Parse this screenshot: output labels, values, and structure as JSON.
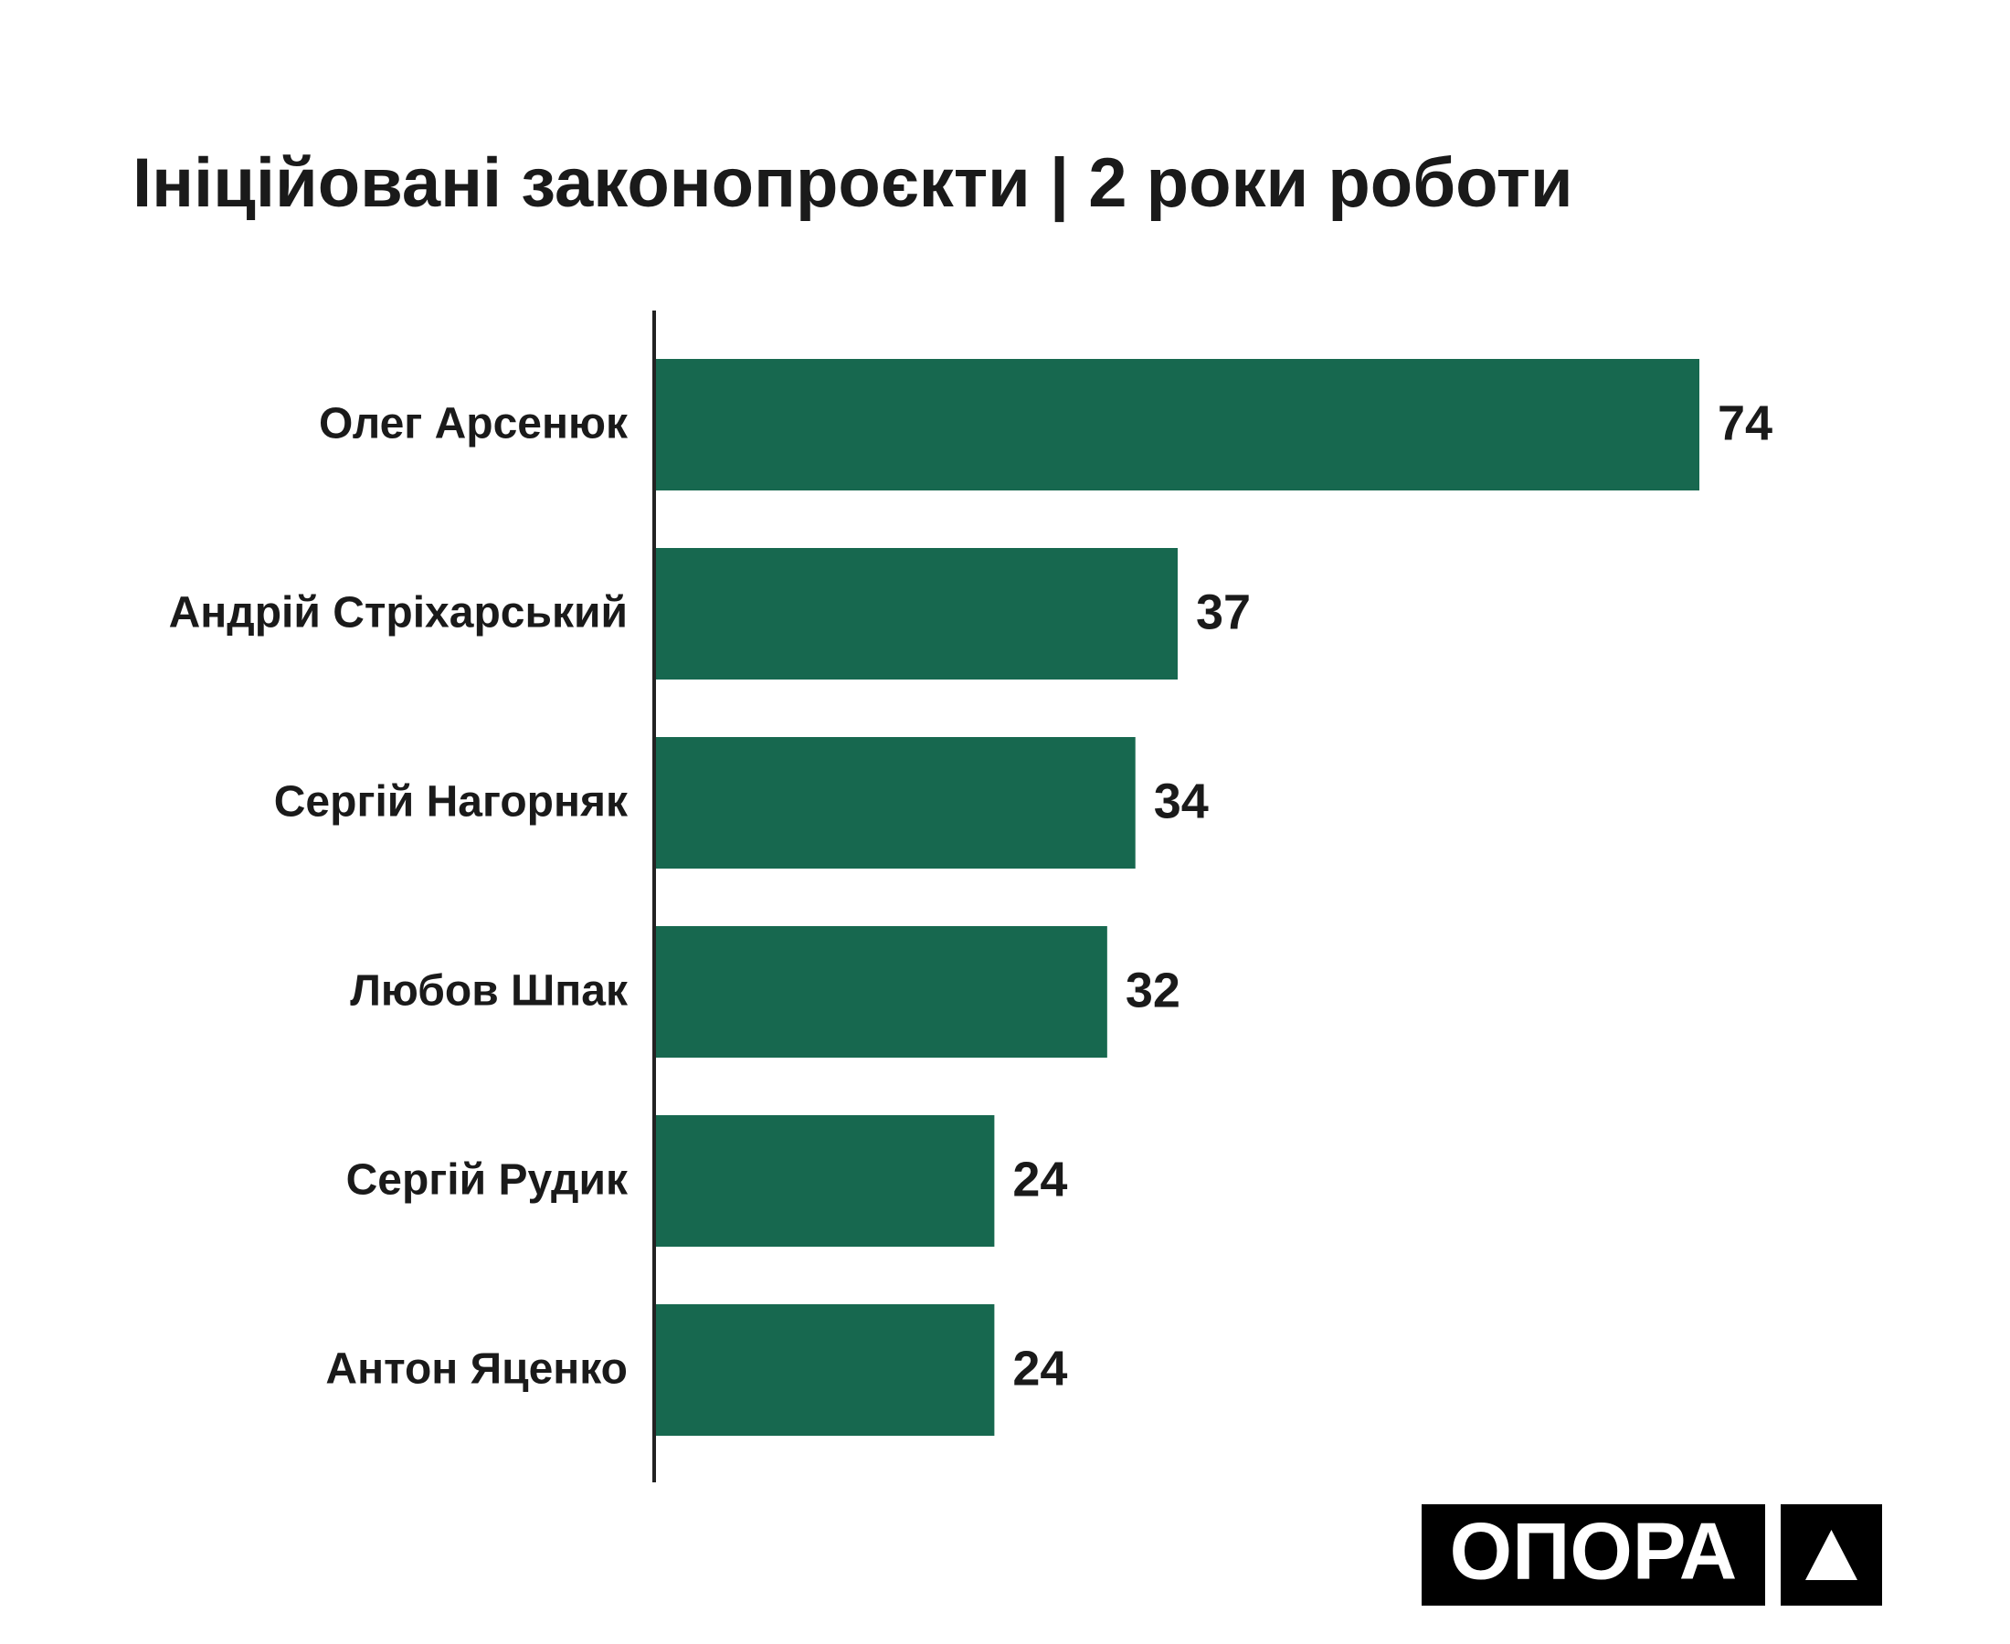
{
  "chart_data": {
    "type": "bar",
    "orientation": "horizontal",
    "title": "Ініційовані законопроєкти | 2 роки роботи",
    "categories": [
      "Олег Арсенюк",
      "Андрій Стріхарський",
      "Сергій Нагорняк",
      "Любов Шпак",
      "Сергій Рудик",
      "Антон Яценко"
    ],
    "values": [
      74,
      37,
      34,
      32,
      24,
      24
    ],
    "color": "#17684f"
  },
  "brand": "ОПОРА"
}
